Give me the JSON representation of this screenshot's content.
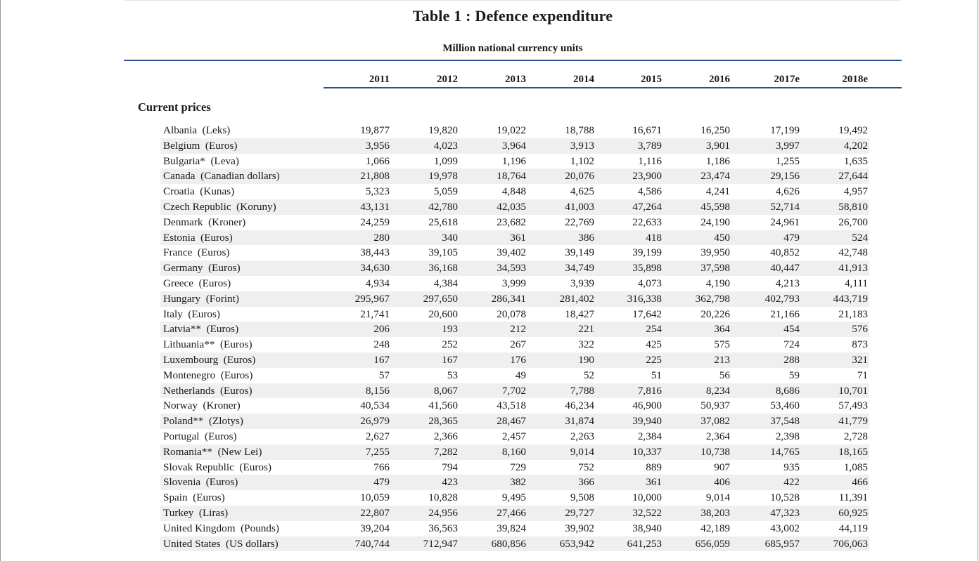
{
  "table": {
    "title": "Table 1 : Defence expenditure",
    "subtitle": "Million national currency units",
    "years": [
      "2011",
      "2012",
      "2013",
      "2014",
      "2015",
      "2016",
      "2017e",
      "2018e"
    ],
    "section": "Current prices",
    "rows": [
      {
        "country": "Albania  (Leks)",
        "values": [
          "19,877",
          "19,820",
          "19,022",
          "18,788",
          "16,671",
          "16,250",
          "17,199",
          "19,492"
        ]
      },
      {
        "country": "Belgium  (Euros)",
        "values": [
          "3,956",
          "4,023",
          "3,964",
          "3,913",
          "3,789",
          "3,901",
          "3,997",
          "4,202"
        ]
      },
      {
        "country": "Bulgaria*  (Leva)",
        "values": [
          "1,066",
          "1,099",
          "1,196",
          "1,102",
          "1,116",
          "1,186",
          "1,255",
          "1,635"
        ]
      },
      {
        "country": "Canada  (Canadian dollars)",
        "values": [
          "21,808",
          "19,978",
          "18,764",
          "20,076",
          "23,900",
          "23,474",
          "29,156",
          "27,644"
        ]
      },
      {
        "country": "Croatia  (Kunas)",
        "values": [
          "5,323",
          "5,059",
          "4,848",
          "4,625",
          "4,586",
          "4,241",
          "4,626",
          "4,957"
        ]
      },
      {
        "country": "Czech Republic  (Koruny)",
        "values": [
          "43,131",
          "42,780",
          "42,035",
          "41,003",
          "47,264",
          "45,598",
          "52,714",
          "58,810"
        ]
      },
      {
        "country": "Denmark  (Kroner)",
        "values": [
          "24,259",
          "25,618",
          "23,682",
          "22,769",
          "22,633",
          "24,190",
          "24,961",
          "26,700"
        ]
      },
      {
        "country": "Estonia  (Euros)",
        "values": [
          "280",
          "340",
          "361",
          "386",
          "418",
          "450",
          "479",
          "524"
        ]
      },
      {
        "country": "France  (Euros)",
        "values": [
          "38,443",
          "39,105",
          "39,402",
          "39,149",
          "39,199",
          "39,950",
          "40,852",
          "42,748"
        ]
      },
      {
        "country": "Germany  (Euros)",
        "values": [
          "34,630",
          "36,168",
          "34,593",
          "34,749",
          "35,898",
          "37,598",
          "40,447",
          "41,913"
        ]
      },
      {
        "country": "Greece  (Euros)",
        "values": [
          "4,934",
          "4,384",
          "3,999",
          "3,939",
          "4,073",
          "4,190",
          "4,213",
          "4,111"
        ]
      },
      {
        "country": "Hungary  (Forint)",
        "values": [
          "295,967",
          "297,650",
          "286,341",
          "281,402",
          "316,338",
          "362,798",
          "402,793",
          "443,719"
        ]
      },
      {
        "country": "Italy  (Euros)",
        "values": [
          "21,741",
          "20,600",
          "20,078",
          "18,427",
          "17,642",
          "20,226",
          "21,166",
          "21,183"
        ]
      },
      {
        "country": "Latvia**  (Euros)",
        "values": [
          "206",
          "193",
          "212",
          "221",
          "254",
          "364",
          "454",
          "576"
        ]
      },
      {
        "country": "Lithuania**  (Euros)",
        "values": [
          "248",
          "252",
          "267",
          "322",
          "425",
          "575",
          "724",
          "873"
        ]
      },
      {
        "country": "Luxembourg  (Euros)",
        "values": [
          "167",
          "167",
          "176",
          "190",
          "225",
          "213",
          "288",
          "321"
        ]
      },
      {
        "country": "Montenegro  (Euros)",
        "values": [
          "57",
          "53",
          "49",
          "52",
          "51",
          "56",
          "59",
          "71"
        ]
      },
      {
        "country": "Netherlands  (Euros)",
        "values": [
          "8,156",
          "8,067",
          "7,702",
          "7,788",
          "7,816",
          "8,234",
          "8,686",
          "10,701"
        ]
      },
      {
        "country": "Norway  (Kroner)",
        "values": [
          "40,534",
          "41,560",
          "43,518",
          "46,234",
          "46,900",
          "50,937",
          "53,460",
          "57,493"
        ]
      },
      {
        "country": "Poland**  (Zlotys)",
        "values": [
          "26,979",
          "28,365",
          "28,467",
          "31,874",
          "39,940",
          "37,082",
          "37,548",
          "41,779"
        ]
      },
      {
        "country": "Portugal  (Euros)",
        "values": [
          "2,627",
          "2,366",
          "2,457",
          "2,263",
          "2,384",
          "2,364",
          "2,398",
          "2,728"
        ]
      },
      {
        "country": "Romania**  (New Lei)",
        "values": [
          "7,255",
          "7,282",
          "8,160",
          "9,014",
          "10,337",
          "10,738",
          "14,765",
          "18,165"
        ]
      },
      {
        "country": "Slovak Republic  (Euros)",
        "values": [
          "766",
          "794",
          "729",
          "752",
          "889",
          "907",
          "935",
          "1,085"
        ]
      },
      {
        "country": "Slovenia  (Euros)",
        "values": [
          "479",
          "423",
          "382",
          "366",
          "361",
          "406",
          "422",
          "466"
        ]
      },
      {
        "country": "Spain  (Euros)",
        "values": [
          "10,059",
          "10,828",
          "9,495",
          "9,508",
          "10,000",
          "9,014",
          "10,528",
          "11,391"
        ]
      },
      {
        "country": "Turkey  (Liras)",
        "values": [
          "22,807",
          "24,956",
          "27,466",
          "29,727",
          "32,522",
          "38,203",
          "47,323",
          "60,925"
        ]
      },
      {
        "country": "United Kingdom  (Pounds)",
        "values": [
          "39,204",
          "36,563",
          "39,824",
          "39,902",
          "38,940",
          "42,189",
          "43,002",
          "44,119"
        ]
      },
      {
        "country": "United States  (US dollars)",
        "values": [
          "740,744",
          "712,947",
          "680,856",
          "653,942",
          "641,253",
          "656,059",
          "685,957",
          "706,063"
        ]
      }
    ]
  }
}
